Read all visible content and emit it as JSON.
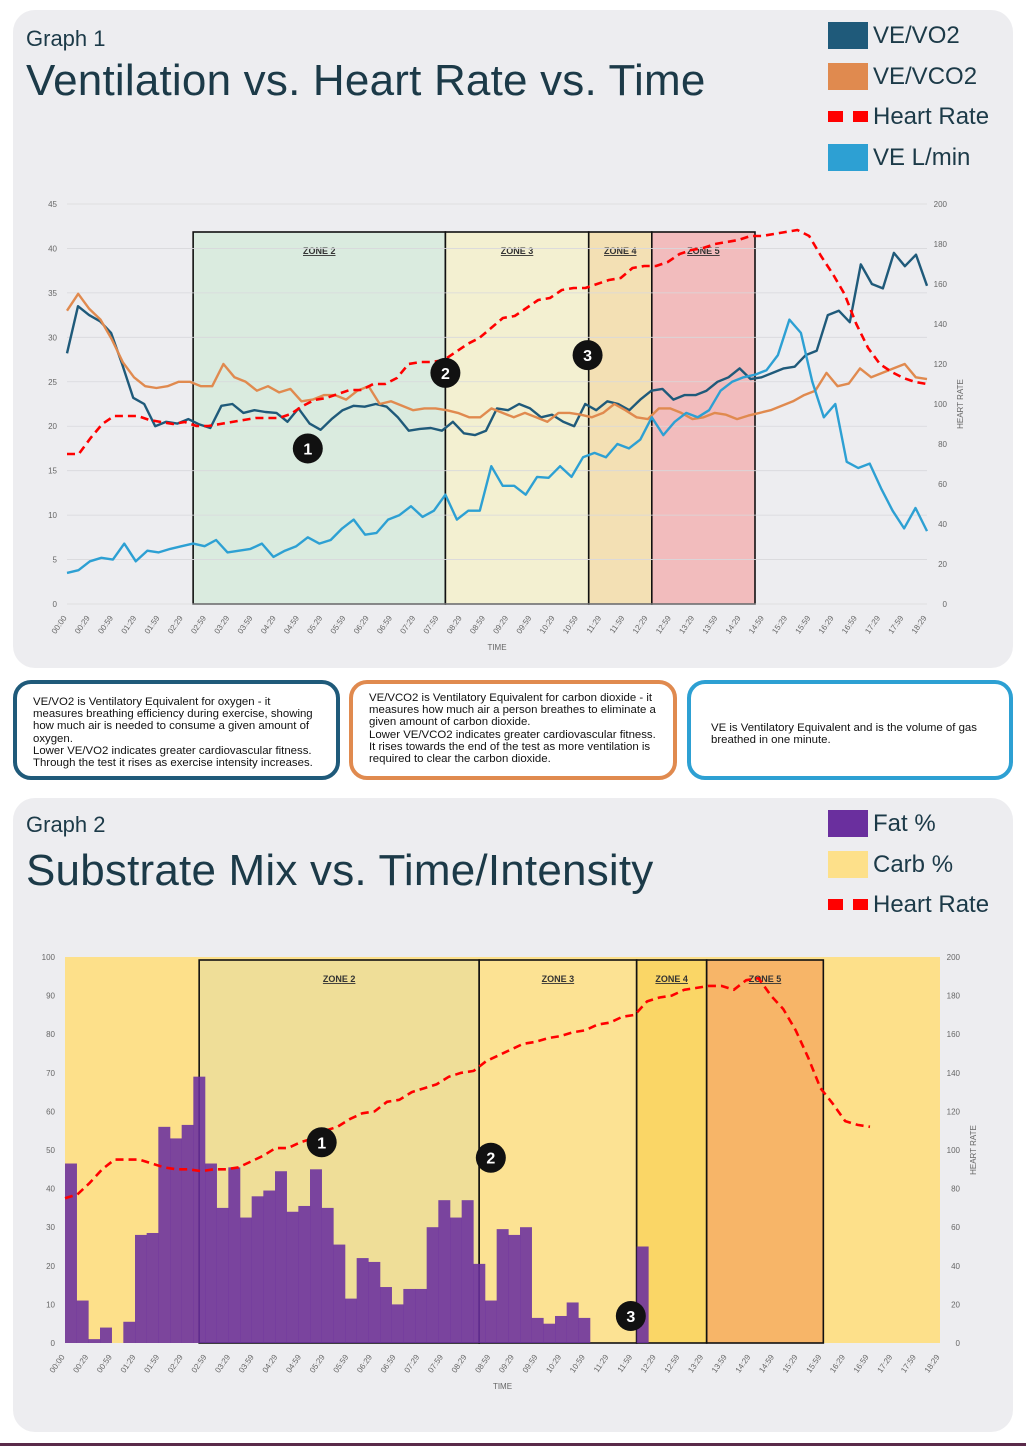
{
  "graph1": {
    "label": "Graph 1",
    "title": "Ventilation vs. Heart Rate vs. Time",
    "legend": [
      {
        "label": "VE/VO2",
        "color": "#1f5a7a",
        "style": "solid"
      },
      {
        "label": "VE/VCO2",
        "color": "#e08a4f",
        "style": "solid"
      },
      {
        "label": "Heart Rate",
        "color": "#ff0000",
        "style": "dash"
      },
      {
        "label": "VE L/min",
        "color": "#2da0d3",
        "style": "solid"
      }
    ]
  },
  "info": {
    "vo2": "VE/VO2 is Ventilatory Equivalent for oxygen - it measures breathing efficiency during exercise, showing how much air is needed to consume a given amount of oxygen.\nLower VE/VO2 indicates greater cardiovascular fitness.  Through the test it rises as exercise intensity increases.",
    "vco2": "VE/VCO2 is Ventilatory Equivalent for carbon dioxide - it measures how much air a person breathes to eliminate a given amount of carbon dioxide.\nLower VE/VCO2 indicates greater cardiovascular fitness.  It rises towards the end of the test as more ventilation is required to clear the carbon dioxide.",
    "ve": "VE is Ventilatory Equivalent and is the volume of gas breathed in one minute."
  },
  "graph2": {
    "label": "Graph 2",
    "title": "Substrate Mix vs. Time/Intensity",
    "legend": [
      {
        "label": "Fat %",
        "color": "#6a2f9e",
        "style": "solid"
      },
      {
        "label": "Carb %",
        "color": "#fde08a",
        "style": "solid"
      },
      {
        "label": "Heart Rate",
        "color": "#ff0000",
        "style": "dash"
      }
    ]
  },
  "chart_data": [
    {
      "type": "line",
      "title": "",
      "xlabel": "TIME",
      "ylabel": "",
      "y2label": "HEART RATE",
      "ylim": [
        0,
        45
      ],
      "y2lim": [
        0,
        200
      ],
      "yticks": [
        0,
        5,
        10,
        15,
        20,
        25,
        30,
        35,
        40,
        45
      ],
      "y2ticks": [
        0,
        20,
        40,
        60,
        80,
        100,
        120,
        140,
        160,
        180,
        200
      ],
      "grid": true,
      "x_tick_labels": [
        "00:00",
        "00:29",
        "00:59",
        "01:29",
        "01:59",
        "02:29",
        "02:59",
        "03:29",
        "03:59",
        "04:29",
        "04:59",
        "05:29",
        "05:59",
        "06:29",
        "06:59",
        "07:29",
        "07:59",
        "08:29",
        "08:59",
        "09:29",
        "09:59",
        "10:29",
        "10:59",
        "11:29",
        "11:59",
        "12:29",
        "12:59",
        "13:29",
        "13:59",
        "14:29",
        "14:59",
        "15:29",
        "15:59",
        "16:29",
        "16:59",
        "17:29",
        "17:59",
        "18:29"
      ],
      "x_range": [
        0,
        75
      ],
      "zones": [
        {
          "label": "ZONE 2",
          "start": 11,
          "end": 33,
          "color": "#d9ebdd"
        },
        {
          "label": "ZONE 3",
          "start": 33,
          "end": 45.5,
          "color": "#f3f0cf"
        },
        {
          "label": "ZONE 4",
          "start": 45.5,
          "end": 51,
          "color": "#f3dfb0"
        },
        {
          "label": "ZONE 5",
          "start": 51,
          "end": 60,
          "color": "#f2b9b9"
        }
      ],
      "markers": [
        {
          "label": "1",
          "x": 21,
          "y": 17.5
        },
        {
          "label": "2",
          "x": 33,
          "y": 26
        },
        {
          "label": "3",
          "x": 45.4,
          "y": 28
        }
      ],
      "series": [
        {
          "name": "VE/VO2",
          "color": "#1f5a7a",
          "axis": "left",
          "style": "solid",
          "values": [
            28.2,
            33.5,
            32.5,
            31.8,
            30.5,
            27,
            23.2,
            22.5,
            20,
            20.5,
            20.3,
            20.8,
            20.2,
            19.8,
            22.3,
            22.5,
            21.5,
            21.8,
            21.6,
            21.5,
            20.5,
            22,
            20.3,
            19.6,
            20.8,
            21.8,
            22.3,
            22.2,
            22.5,
            22.2,
            21,
            19.5,
            19.7,
            19.8,
            19.5,
            20.5,
            19.2,
            19,
            19.5,
            22,
            21.8,
            22.5,
            22,
            21,
            21.3,
            20.5,
            20,
            22.5,
            21.8,
            22.8,
            22.5,
            21.8,
            23,
            24,
            24.2,
            23,
            23.5,
            23.5,
            24,
            25,
            25.5,
            26.5,
            25.3,
            25.5,
            26,
            26.5,
            26.7,
            28,
            28.5,
            32.5,
            33,
            31.7,
            38.2,
            36,
            35.5,
            39.5,
            38,
            39.3,
            35.8
          ]
        },
        {
          "name": "VE/VCO2",
          "color": "#e08a4f",
          "axis": "left",
          "style": "solid",
          "values": [
            33,
            34.9,
            33.2,
            32,
            29.8,
            27.2,
            25.5,
            24.5,
            24.3,
            24.5,
            25,
            25,
            24.5,
            24.5,
            27,
            25.5,
            25,
            24,
            24.5,
            23.8,
            24.2,
            22.8,
            23,
            23.5,
            23.5,
            23,
            24,
            24.5,
            22.5,
            22.8,
            22.3,
            21.8,
            22,
            22,
            21.8,
            21.5,
            21,
            21,
            22,
            21.5,
            21,
            21.5,
            21,
            20.5,
            21.5,
            21.5,
            21.3,
            21,
            21.5,
            22.5,
            21.8,
            21,
            20.8,
            22,
            22,
            21.5,
            20.8,
            21,
            21.5,
            21.3,
            20.8,
            21.2,
            21.5,
            21.8,
            22.3,
            22.8,
            23.5,
            24,
            26,
            24.5,
            24.8,
            26.5,
            25.5,
            26,
            26.5,
            27,
            25.5,
            25.3
          ]
        },
        {
          "name": "VE L/min",
          "color": "#2da0d3",
          "axis": "left",
          "style": "solid",
          "values": [
            3.5,
            3.8,
            4.8,
            5.2,
            5,
            6.8,
            4.8,
            6,
            5.8,
            6.2,
            6.5,
            6.8,
            6.5,
            7.2,
            5.8,
            6,
            6.2,
            6.8,
            5.3,
            6,
            6.5,
            7.5,
            6.8,
            7.2,
            8.5,
            9.5,
            7.8,
            8,
            9.5,
            10,
            11,
            9.8,
            10.5,
            12.3,
            9.5,
            10.5,
            10.5,
            15.5,
            13.3,
            13.3,
            12.3,
            14.3,
            14.2,
            15.5,
            14.3,
            16.5,
            17,
            16.5,
            18,
            17.5,
            18.5,
            21,
            19,
            20.5,
            21.5,
            21,
            21.8,
            24,
            25,
            25.5,
            25.8,
            26.3,
            28,
            32,
            30.5,
            25,
            21,
            22.5,
            16,
            15.3,
            15.8,
            13,
            10.5,
            8.5,
            10.8,
            8.2
          ]
        },
        {
          "name": "Heart Rate",
          "color": "#ff0000",
          "axis": "right",
          "style": "dash",
          "values": [
            75,
            75,
            83,
            90,
            94,
            94,
            94,
            92,
            91,
            90,
            91,
            89,
            89,
            90,
            91,
            92,
            93,
            93,
            93,
            95,
            99,
            102,
            103,
            105,
            107,
            107,
            110,
            110,
            113,
            120,
            121,
            121,
            122,
            126,
            130,
            133,
            138,
            143,
            144,
            148,
            152,
            153,
            157,
            158,
            158,
            160,
            162,
            163,
            168,
            169,
            169,
            171,
            175,
            177,
            178,
            180,
            181,
            182,
            184,
            184,
            185,
            186,
            187,
            184,
            174,
            165,
            155,
            140,
            128,
            120,
            116,
            113,
            111,
            110
          ]
        }
      ]
    },
    {
      "type": "bar",
      "title": "",
      "xlabel": "TIME",
      "ylabel": "",
      "y2label": "HEART RATE",
      "ylim": [
        0,
        100
      ],
      "y2lim": [
        0,
        200
      ],
      "yticks": [
        0,
        10,
        20,
        30,
        40,
        50,
        60,
        70,
        80,
        90,
        100
      ],
      "y2ticks": [
        0,
        20,
        40,
        60,
        80,
        100,
        120,
        140,
        160,
        180,
        200
      ],
      "grid": false,
      "x_tick_labels": [
        "00:00",
        "00:29",
        "00:59",
        "01:29",
        "01:59",
        "02:29",
        "02:59",
        "03:29",
        "03:59",
        "04:29",
        "04:59",
        "05:29",
        "05:59",
        "06:29",
        "06:59",
        "07:29",
        "07:59",
        "08:29",
        "08:59",
        "09:29",
        "09:59",
        "10:29",
        "10:59",
        "11:29",
        "11:59",
        "12:29",
        "12:59",
        "13:29",
        "13:59",
        "14:29",
        "14:59",
        "15:29",
        "15:59",
        "16:29",
        "16:59",
        "17:29",
        "17:59",
        "18:29"
      ],
      "x_range": [
        0,
        75
      ],
      "zones": [
        {
          "label": "ZONE 2",
          "start": 11.5,
          "end": 35.5,
          "color": "#e9dd9c"
        },
        {
          "label": "ZONE 3",
          "start": 35.5,
          "end": 49,
          "color": "#fbe396"
        },
        {
          "label": "ZONE 4",
          "start": 49,
          "end": 55,
          "color": "#f8d35a"
        },
        {
          "label": "ZONE 5",
          "start": 55,
          "end": 65,
          "color": "#f4a75c"
        }
      ],
      "markers": [
        {
          "label": "1",
          "x": 22,
          "y": 52
        },
        {
          "label": "2",
          "x": 36.5,
          "y": 48
        },
        {
          "label": "3",
          "x": 48.5,
          "y": 7
        }
      ],
      "series": [
        {
          "name": "Fat %",
          "color": "#6a2f9e",
          "axis": "left",
          "values": [
            46.5,
            11,
            1,
            4,
            0,
            5.5,
            28,
            28.5,
            56,
            53,
            56.5,
            69,
            46.5,
            35,
            45.5,
            32.5,
            38,
            39.5,
            44.5,
            34,
            35.5,
            45,
            35,
            25.5,
            11.5,
            22,
            21,
            14.5,
            10,
            14,
            14,
            30,
            37,
            32.5,
            37,
            20.5,
            11,
            29.5,
            28,
            30,
            6.5,
            5,
            7,
            10.5,
            6.5,
            0,
            0,
            0,
            0,
            25
          ]
        },
        {
          "name": "Carb %",
          "color": "#fde08a",
          "axis": "left",
          "values": []
        },
        {
          "name": "Heart Rate",
          "color": "#ff0000",
          "axis": "right",
          "style": "dash",
          "values": [
            75,
            77,
            83,
            90,
            95,
            95,
            95,
            93,
            91,
            90,
            90,
            89,
            90,
            90,
            91,
            94,
            97,
            101,
            101,
            104,
            106,
            110,
            112,
            116,
            119,
            120,
            125,
            126,
            130,
            132,
            134,
            138,
            140,
            141,
            146,
            149,
            152,
            155,
            156,
            158,
            159,
            161,
            162,
            165,
            166,
            169,
            170,
            177,
            179,
            180,
            183,
            184,
            185,
            185,
            183,
            188,
            189,
            180,
            173,
            162,
            148,
            132,
            124,
            115,
            113,
            112
          ]
        }
      ]
    }
  ]
}
